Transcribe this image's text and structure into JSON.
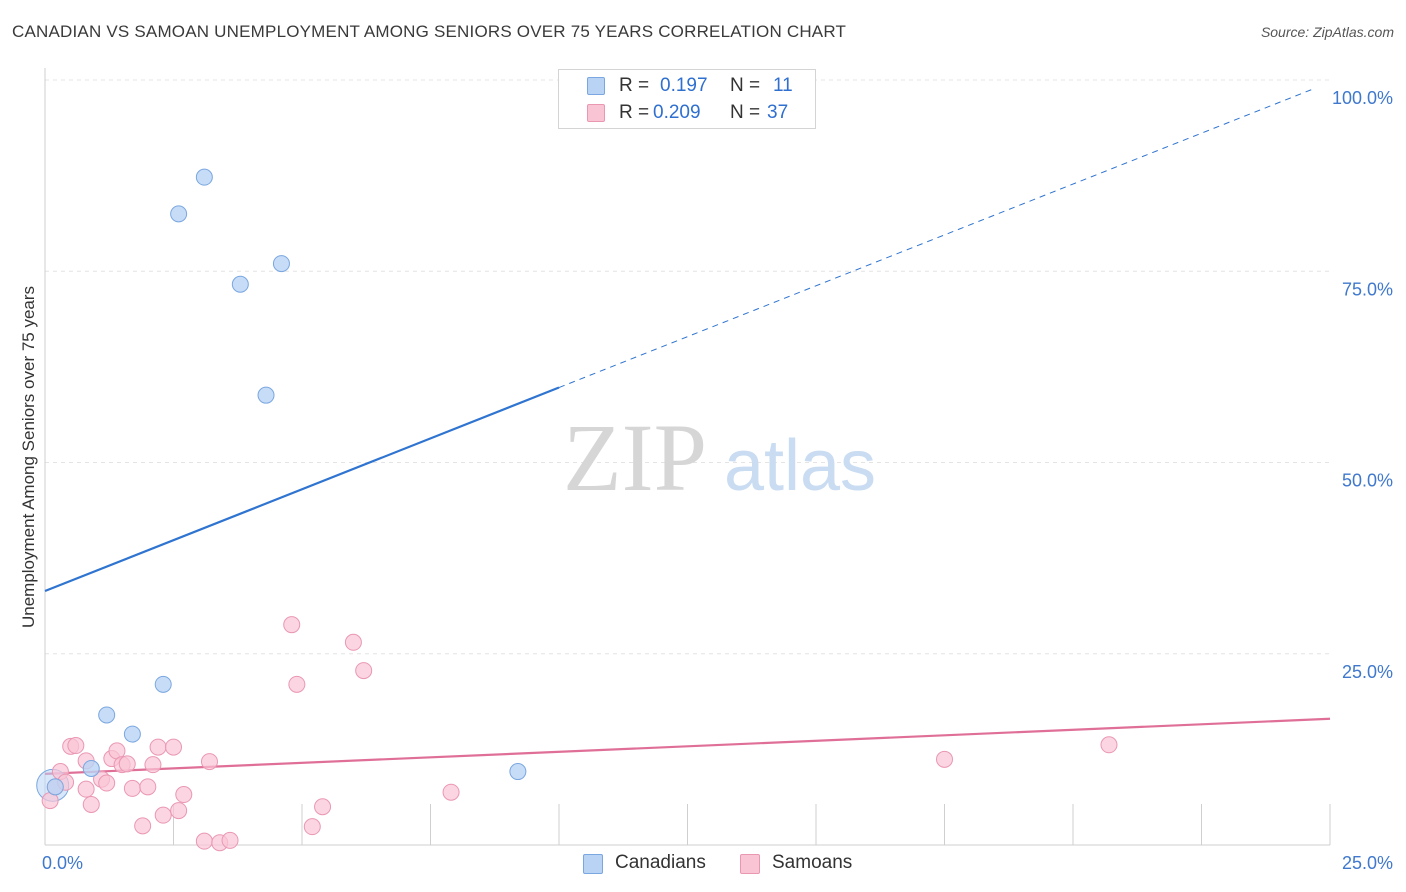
{
  "title": "CANADIAN VS SAMOAN UNEMPLOYMENT AMONG SENIORS OVER 75 YEARS CORRELATION CHART",
  "source": "Source: ZipAtlas.com",
  "watermark": {
    "zip": "ZIP",
    "atlas": "atlas"
  },
  "colors": {
    "canadians_fill": "#b9d3f5",
    "canadians_stroke": "#7aa7e0",
    "canadians_line": "#2f74d0",
    "samoans_fill": "#f9c5d5",
    "samoans_stroke": "#ea97b2",
    "samoans_line": "#e06f98",
    "tick_label": "#3f78cc",
    "grid": "#e4e4e4"
  },
  "legend": {
    "rows": [
      {
        "r_label": "R =",
        "r_value": "0.197",
        "n_label": "N =",
        "n_value": "11"
      },
      {
        "r_label": "R =",
        "r_value": "0.209",
        "n_label": "N =",
        "n_value": "37"
      }
    ]
  },
  "bottom_legend": {
    "canadians": "Canadians",
    "samoans": "Samoans"
  },
  "chart_data": {
    "type": "scatter",
    "title": "CANADIAN VS SAMOAN UNEMPLOYMENT AMONG SENIORS OVER 75 YEARS CORRELATION CHART",
    "xlabel": "",
    "ylabel": "Unemployment Among Seniors over 75 years",
    "xlim": [
      0,
      25
    ],
    "ylim": [
      0,
      100
    ],
    "x_tick_labels": [
      "0.0%",
      "25.0%"
    ],
    "y_tick_labels": [
      "100.0%",
      "75.0%",
      "50.0%",
      "25.0%"
    ],
    "y_ticks": [
      100,
      75,
      50,
      25
    ],
    "grid": true,
    "legend_position": "top-center",
    "series": [
      {
        "name": "Canadians",
        "points": [
          [
            0.2,
            7.6
          ],
          [
            0.9,
            10.0
          ],
          [
            1.2,
            17.0
          ],
          [
            1.7,
            14.5
          ],
          [
            2.3,
            21.0
          ],
          [
            2.6,
            82.5
          ],
          [
            3.1,
            87.3
          ],
          [
            3.8,
            73.3
          ],
          [
            4.3,
            58.8
          ],
          [
            4.6,
            76.0
          ],
          [
            9.2,
            9.6
          ]
        ],
        "trend": {
          "x": [
            0,
            10
          ],
          "y": [
            33.2,
            59.8
          ],
          "extended": {
            "x": [
              10,
              24.7
            ],
            "y": [
              59.8,
              98.9
            ]
          }
        }
      },
      {
        "name": "Samoans",
        "points": [
          [
            0.1,
            5.8
          ],
          [
            0.2,
            7.6
          ],
          [
            0.3,
            9.6
          ],
          [
            0.4,
            8.2
          ],
          [
            0.5,
            12.9
          ],
          [
            0.6,
            13.0
          ],
          [
            0.8,
            11.0
          ],
          [
            0.8,
            7.3
          ],
          [
            0.9,
            5.3
          ],
          [
            1.1,
            8.6
          ],
          [
            1.2,
            8.1
          ],
          [
            1.3,
            11.3
          ],
          [
            1.4,
            12.3
          ],
          [
            1.5,
            10.5
          ],
          [
            1.6,
            10.6
          ],
          [
            1.7,
            7.4
          ],
          [
            1.9,
            2.5
          ],
          [
            2.0,
            7.6
          ],
          [
            2.1,
            10.5
          ],
          [
            2.2,
            12.8
          ],
          [
            2.3,
            3.9
          ],
          [
            2.5,
            12.8
          ],
          [
            2.6,
            4.5
          ],
          [
            2.7,
            6.6
          ],
          [
            3.1,
            0.5
          ],
          [
            3.2,
            10.9
          ],
          [
            3.4,
            0.3
          ],
          [
            3.6,
            0.6
          ],
          [
            4.8,
            28.8
          ],
          [
            4.9,
            21.0
          ],
          [
            5.2,
            2.4
          ],
          [
            5.4,
            5.0
          ],
          [
            6.0,
            26.5
          ],
          [
            6.2,
            22.8
          ],
          [
            7.9,
            6.9
          ],
          [
            17.5,
            11.2
          ],
          [
            20.7,
            13.1
          ]
        ],
        "trend": {
          "x": [
            0,
            25
          ],
          "y": [
            9.3,
            16.5
          ]
        }
      }
    ]
  }
}
